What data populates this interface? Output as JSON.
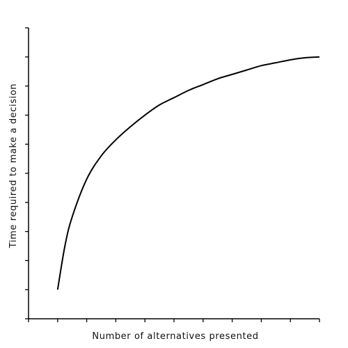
{
  "chart_data": {
    "type": "line",
    "title": "",
    "xlabel": "Number of alternatives presented",
    "ylabel": "Time required to make a decision",
    "xlim": [
      0,
      10
    ],
    "ylim": [
      0,
      10
    ],
    "x_tick_count": 11,
    "y_tick_count": 11,
    "tick_labels_shown": false,
    "grid": false,
    "legend": "none",
    "series": [
      {
        "x": [
          1,
          1.25,
          1.5,
          2,
          2.5,
          3,
          3.5,
          4,
          4.5,
          5,
          5.5,
          6,
          6.5,
          7,
          7.5,
          8,
          8.5,
          9,
          9.5,
          10
        ],
        "y": [
          1.0,
          2.5,
          3.5,
          4.8,
          5.6,
          6.15,
          6.6,
          7.0,
          7.35,
          7.6,
          7.85,
          8.05,
          8.25,
          8.4,
          8.55,
          8.7,
          8.8,
          8.9,
          8.97,
          9.0
        ]
      }
    ],
    "colors": {
      "line": "#000000",
      "axis": "#000000"
    }
  }
}
